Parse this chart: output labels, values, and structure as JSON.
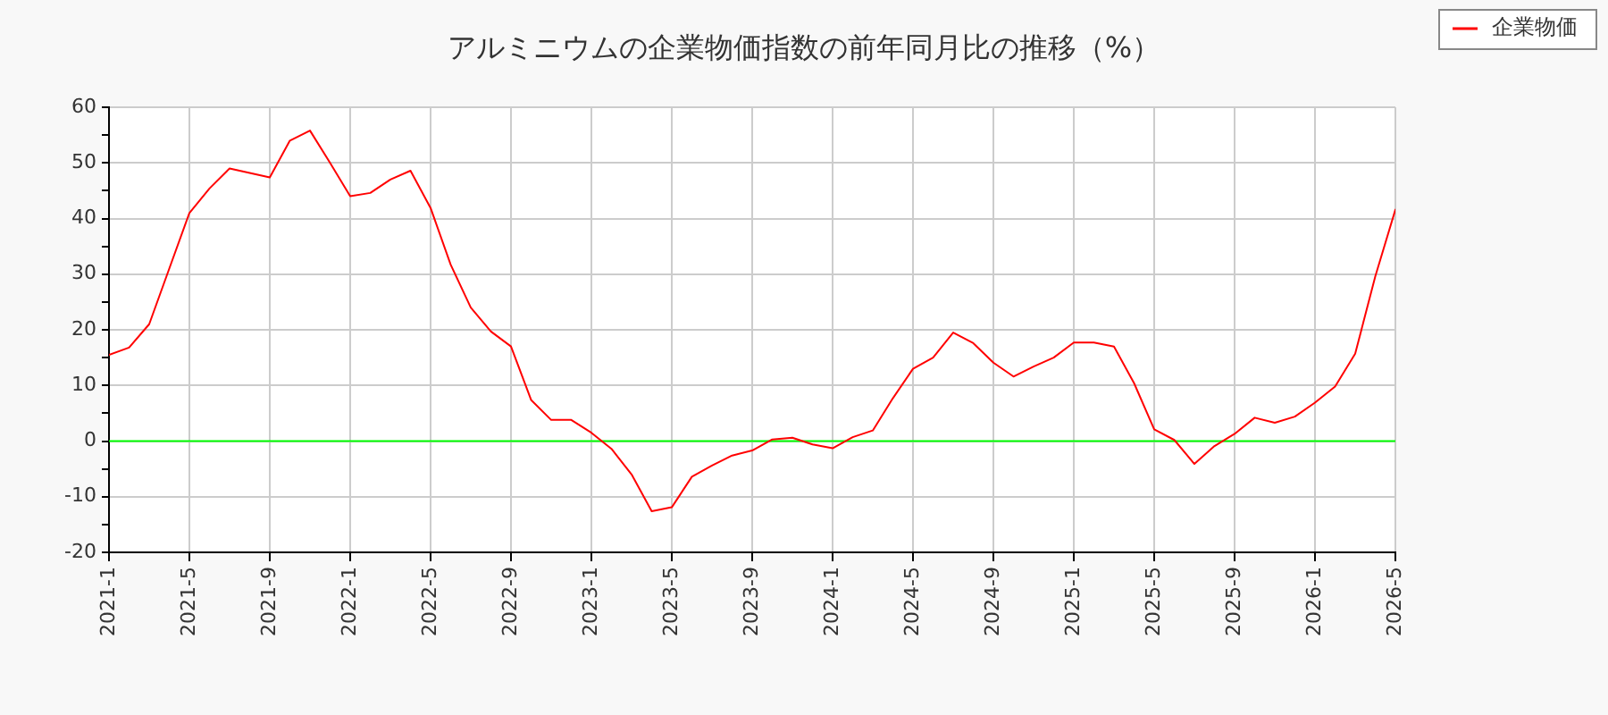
{
  "chart_data": {
    "type": "line",
    "title": "アルミニウムの企業物価指数の前年同月比の推移（%）",
    "x": [
      "2021-01",
      "2021-02",
      "2021-03",
      "2021-04",
      "2021-05",
      "2021-06",
      "2021-07",
      "2021-08",
      "2021-09",
      "2021-10",
      "2021-11",
      "2021-12",
      "2022-01",
      "2022-02",
      "2022-03",
      "2022-04",
      "2022-05",
      "2022-06",
      "2022-07",
      "2022-08",
      "2022-09",
      "2022-10",
      "2022-11",
      "2022-12",
      "2023-01",
      "2023-02",
      "2023-03",
      "2023-04",
      "2023-05",
      "2023-06",
      "2023-07",
      "2023-08",
      "2023-09",
      "2023-10",
      "2023-11",
      "2023-12",
      "2024-01",
      "2024-02",
      "2024-03",
      "2024-04",
      "2024-05",
      "2024-06",
      "2024-07",
      "2024-08",
      "2024-09",
      "2024-10",
      "2024-11",
      "2024-12",
      "2025-01",
      "2025-02",
      "2025-03",
      "2025-04",
      "2025-05",
      "2025-06",
      "2025-07",
      "2025-08",
      "2025-09",
      "2025-10",
      "2025-11",
      "2025-12",
      "2026-01",
      "2026-02",
      "2026-03",
      "2026-04",
      "2026-05"
    ],
    "series": [
      {
        "name": "企業物価",
        "color": "#ff0000",
        "values": [
          15.5,
          16.8,
          21,
          31,
          41,
          45.4,
          49,
          48.2,
          47.4,
          54,
          55.8,
          50,
          44,
          44.6,
          47,
          48.6,
          41.9,
          31.7,
          24,
          19.7,
          17,
          7.4,
          3.8,
          3.8,
          1.5,
          -1.4,
          -6,
          -12.6,
          -11.9,
          -6.4,
          -4.4,
          -2.6,
          -1.7,
          0.3,
          0.6,
          -0.6,
          -1.3,
          0.7,
          1.9,
          7.7,
          13,
          15,
          19.5,
          17.6,
          14.1,
          11.6,
          13.4,
          15,
          17.7,
          17.7,
          17,
          10.4,
          2.1,
          0.2,
          -4.1,
          -0.9,
          1.3,
          4.2,
          3.3,
          4.4,
          6.9,
          9.8,
          15.7,
          29.6,
          41.6
        ]
      }
    ],
    "xlim": [
      "2021-01",
      "2026-05"
    ],
    "xticks": [
      {
        "value": "2021-01",
        "label": "2021-1"
      },
      {
        "value": "2021-05",
        "label": "2021-5"
      },
      {
        "value": "2021-09",
        "label": "2021-9"
      },
      {
        "value": "2022-01",
        "label": "2022-1"
      },
      {
        "value": "2022-05",
        "label": "2022-5"
      },
      {
        "value": "2022-09",
        "label": "2022-9"
      },
      {
        "value": "2023-01",
        "label": "2023-1"
      },
      {
        "value": "2023-05",
        "label": "2023-5"
      },
      {
        "value": "2023-09",
        "label": "2023-9"
      },
      {
        "value": "2024-01",
        "label": "2024-1"
      },
      {
        "value": "2024-05",
        "label": "2024-5"
      },
      {
        "value": "2024-09",
        "label": "2024-9"
      },
      {
        "value": "2025-01",
        "label": "2025-1"
      },
      {
        "value": "2025-05",
        "label": "2025-5"
      },
      {
        "value": "2025-09",
        "label": "2025-9"
      },
      {
        "value": "2026-01",
        "label": "2026-1"
      },
      {
        "value": "2026-05",
        "label": "2026-5"
      }
    ],
    "ylim": [
      -20,
      60
    ],
    "yticks": [
      -20,
      {
        "value": -15,
        "label": null
      },
      -10,
      {
        "value": -5,
        "label": null
      },
      0,
      {
        "value": 5,
        "label": null
      },
      10,
      {
        "value": 15,
        "label": null
      },
      20,
      {
        "value": 25,
        "label": null
      },
      30,
      {
        "value": 35,
        "label": null
      },
      40,
      {
        "value": 45,
        "label": null
      },
      50,
      {
        "value": 55,
        "label": null
      },
      60
    ],
    "ref_lines": [
      {
        "axis": "y",
        "value": 0,
        "color": "#00ff00"
      }
    ],
    "grid": true,
    "legend": "top right",
    "marker": "none",
    "line_style": "solid"
  }
}
